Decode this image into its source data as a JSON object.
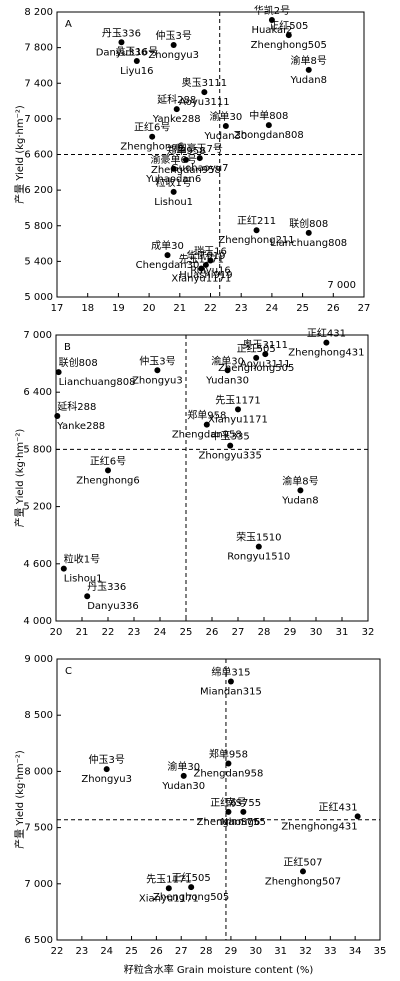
{
  "chart_data": [
    {
      "type": "scatter",
      "panel": "A",
      "ylabel": "产量 Yield (kg·hm⁻²)",
      "annotation": "7 000",
      "xlim": [
        17,
        27
      ],
      "xticks": [
        17,
        18,
        19,
        20,
        21,
        22,
        23,
        24,
        25,
        26,
        27
      ],
      "ylim": [
        5000,
        8200
      ],
      "yticks": [
        {
          "value": 5000,
          "label": "5 000"
        },
        {
          "value": 5400,
          "label": "5 400"
        },
        {
          "value": 5800,
          "label": "5 800"
        },
        {
          "value": 6200,
          "label": "6 200"
        },
        {
          "value": 6600,
          "label": "6 600"
        },
        {
          "value": 7000,
          "label": "7 000"
        },
        {
          "value": 7400,
          "label": "7 400"
        },
        {
          "value": 7800,
          "label": "7 800"
        },
        {
          "value": 8200,
          "label": "8 200"
        }
      ],
      "vline": 22.3,
      "hline": 6600,
      "color": "#000000",
      "labels_cn": [
        "丹玉336",
        "仲玉3号",
        "华凯2号",
        "正红505",
        "渝单8号",
        "蠡玉16号",
        "奥玉3111",
        "延科288",
        "渝单30",
        "中单808",
        "正红6号",
        "郑单958",
        "国豪玉7号",
        "渝豪单6号",
        "粒收1号",
        "正红211",
        "联创808",
        "成单30",
        "华试919",
        "瑞玉16",
        "先玉1171"
      ],
      "labels_en": [
        "Danyu336",
        "Zhongyu3",
        "Huakai2",
        "Zhenghong505",
        "Yudan8",
        "Liyu16",
        "Aoyu3111",
        "Yanke288",
        "Yudan30",
        "Zhongdan808",
        "Zhenghong6",
        "Zhengdan958",
        "Guohaoyu7",
        "Yuhaodan6",
        "Lishou1",
        "Zhenghong211",
        "Lianchuang808",
        "Chengdan30",
        "Huashi919",
        "Ruiyu16",
        "Xianyu1171"
      ],
      "x": [
        19.1,
        20.8,
        24.0,
        24.55,
        25.2,
        19.6,
        21.8,
        20.9,
        22.5,
        23.9,
        20.1,
        21.2,
        21.65,
        20.8,
        20.8,
        23.5,
        25.2,
        20.6,
        21.85,
        22.0,
        21.7
      ],
      "values": [
        7860,
        7830,
        8110,
        7940,
        7550,
        7650,
        7300,
        7110,
        6920,
        6930,
        6800,
        6540,
        6560,
        6440,
        6180,
        5750,
        5720,
        5470,
        5360,
        5410,
        5320
      ]
    },
    {
      "type": "scatter",
      "panel": "B",
      "ylabel": "产量 Yield (kg·hm⁻²)",
      "xlim": [
        20,
        32
      ],
      "xticks": [
        20,
        21,
        22,
        23,
        24,
        25,
        26,
        27,
        28,
        29,
        30,
        31,
        32
      ],
      "ylim": [
        4000,
        7000
      ],
      "yticks": [
        {
          "value": 4000,
          "label": "4 000"
        },
        {
          "value": 4600,
          "label": "4 600"
        },
        {
          "value": 5200,
          "label": "5 200"
        },
        {
          "value": 5800,
          "label": "5 800"
        },
        {
          "value": 6400,
          "label": "6 400"
        },
        {
          "value": 7000,
          "label": "7 000"
        }
      ],
      "vline": 25,
      "hline": 5800,
      "color": "#000000",
      "labels_cn": [
        "仲玉3号",
        "联创808",
        "延科288",
        "奥玉3111",
        "正红505",
        "正红431",
        "渝单30",
        "郑单958",
        "先玉1171",
        "中玉335",
        "正红6号",
        "渝单8号",
        "荣玉1510",
        "粒收1号",
        "丹玉336"
      ],
      "labels_en": [
        "Zhongyu3",
        "Lianchuang808",
        "Yanke288",
        "Aoyu3111",
        "Zhenghong505",
        "Zhenghong431",
        "Yudan30",
        "Zhengdan958",
        "Xianyu1171",
        "Zhongyu335",
        "Zhenghong6",
        "Yudan8",
        "Rongyu1510",
        "Lishou1",
        "Danyu336"
      ],
      "x": [
        23.9,
        20.1,
        20.05,
        28.05,
        27.7,
        30.4,
        26.6,
        25.8,
        27.0,
        26.7,
        22.0,
        29.4,
        27.8,
        20.3,
        21.2
      ],
      "values": [
        6630,
        6610,
        6150,
        6800,
        6760,
        6920,
        6630,
        6060,
        6220,
        5840,
        5580,
        5370,
        4780,
        4550,
        4260
      ]
    },
    {
      "type": "scatter",
      "panel": "C",
      "ylabel": "产量 Yield (kg·hm⁻²)",
      "xlabel": "籽粒含水率 Grain moisture content (%)",
      "xlim": [
        22,
        35
      ],
      "xticks": [
        22,
        23,
        24,
        25,
        26,
        27,
        28,
        29,
        30,
        31,
        32,
        33,
        34,
        35
      ],
      "ylim": [
        6500,
        9000
      ],
      "yticks": [
        {
          "value": 6500,
          "label": "6 500"
        },
        {
          "value": 7000,
          "label": "7 000"
        },
        {
          "value": 7500,
          "label": "7 500"
        },
        {
          "value": 8000,
          "label": "8 000"
        },
        {
          "value": 8500,
          "label": "8 500"
        },
        {
          "value": 9000,
          "label": "9 000"
        }
      ],
      "vline": 28.8,
      "hline": 7570,
      "color": "#000000",
      "labels_cn": [
        "绵单315",
        "仲玉3号",
        "渝单30",
        "郑单958",
        "正红6号",
        "南S755",
        "正红431",
        "正红507",
        "先玉1171",
        "正红505"
      ],
      "labels_en": [
        "Miandan315",
        "Zhongyu3",
        "Yudan30",
        "Zhengdan958",
        "Zhenghong6",
        "NanS755",
        "Zhenghong431",
        "Zhenghong507",
        "Xianyu1171",
        "Zhenghong505"
      ],
      "x": [
        29.0,
        24.0,
        27.1,
        28.9,
        28.9,
        29.5,
        34.1,
        31.9,
        26.5,
        27.4
      ],
      "values": [
        8800,
        8020,
        7960,
        8070,
        7640,
        7640,
        7600,
        7110,
        6960,
        6970
      ]
    }
  ]
}
